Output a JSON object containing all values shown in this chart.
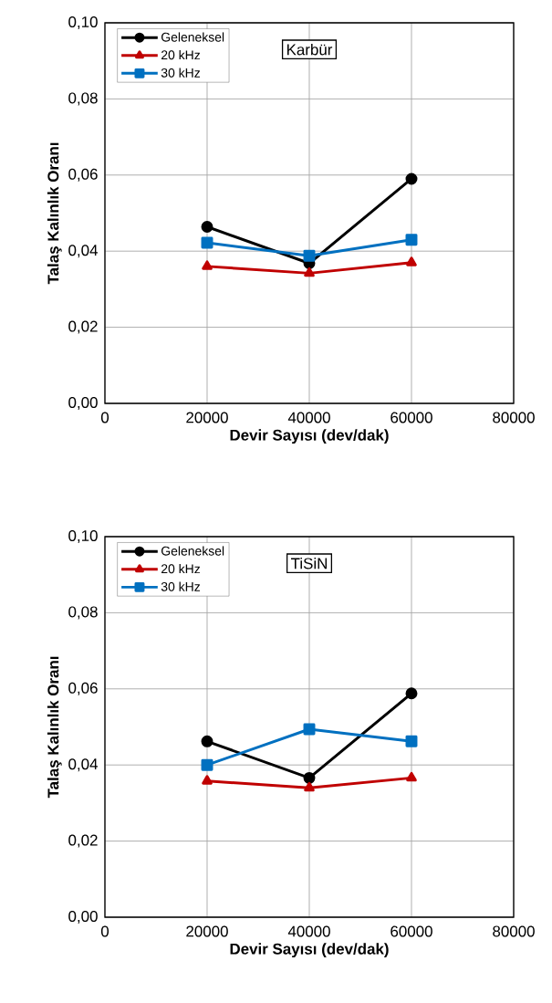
{
  "chart_data": [
    {
      "type": "line",
      "annotations": [
        "Karbür"
      ],
      "xlabel": "Devir Sayısı (dev/dak)",
      "ylabel": "Talaş Kalınlık Oranı",
      "x": [
        20000,
        40000,
        60000
      ],
      "xlim": [
        0,
        80000
      ],
      "xticks": [
        0,
        20000,
        40000,
        60000,
        80000
      ],
      "ylim": [
        0,
        0.1
      ],
      "yticks": [
        {
          "value": 0,
          "label": "0,00"
        },
        {
          "value": 0.02,
          "label": "0,02"
        },
        {
          "value": 0.04,
          "label": "0,04"
        },
        {
          "value": 0.06,
          "label": "0,06"
        },
        {
          "value": 0.08,
          "label": "0,08"
        },
        {
          "value": 0.1,
          "label": "0,10"
        }
      ],
      "grid": true,
      "legend": "top left",
      "series": [
        {
          "name": "Geleneksel",
          "color": "#000000",
          "marker": "circle",
          "values": [
            0.0464,
            0.0368,
            0.059
          ]
        },
        {
          "name": "20 kHz",
          "color": "#c00000",
          "marker": "triangle",
          "values": [
            0.036,
            0.0342,
            0.037
          ]
        },
        {
          "name": "30 kHz",
          "color": "#0070c0",
          "marker": "square",
          "values": [
            0.0422,
            0.0388,
            0.043
          ]
        }
      ]
    },
    {
      "type": "line",
      "annotations": [
        "TiSiN"
      ],
      "xlabel": "Devir Sayısı (dev/dak)",
      "ylabel": "Talaş Kalınlık Oranı",
      "x": [
        20000,
        40000,
        60000
      ],
      "xlim": [
        0,
        80000
      ],
      "xticks": [
        0,
        20000,
        40000,
        60000,
        80000
      ],
      "ylim": [
        0,
        0.1
      ],
      "yticks": [
        {
          "value": 0,
          "label": "0,00"
        },
        {
          "value": 0.02,
          "label": "0,02"
        },
        {
          "value": 0.04,
          "label": "0,04"
        },
        {
          "value": 0.06,
          "label": "0,06"
        },
        {
          "value": 0.08,
          "label": "0,08"
        },
        {
          "value": 0.1,
          "label": "0,10"
        }
      ],
      "grid": true,
      "legend": "top left",
      "series": [
        {
          "name": "Geleneksel",
          "color": "#000000",
          "marker": "circle",
          "values": [
            0.0462,
            0.0366,
            0.0588
          ]
        },
        {
          "name": "20 kHz",
          "color": "#c00000",
          "marker": "triangle",
          "values": [
            0.0358,
            0.034,
            0.0366
          ]
        },
        {
          "name": "30 kHz",
          "color": "#0070c0",
          "marker": "square",
          "values": [
            0.04,
            0.0494,
            0.0462
          ]
        }
      ]
    }
  ]
}
